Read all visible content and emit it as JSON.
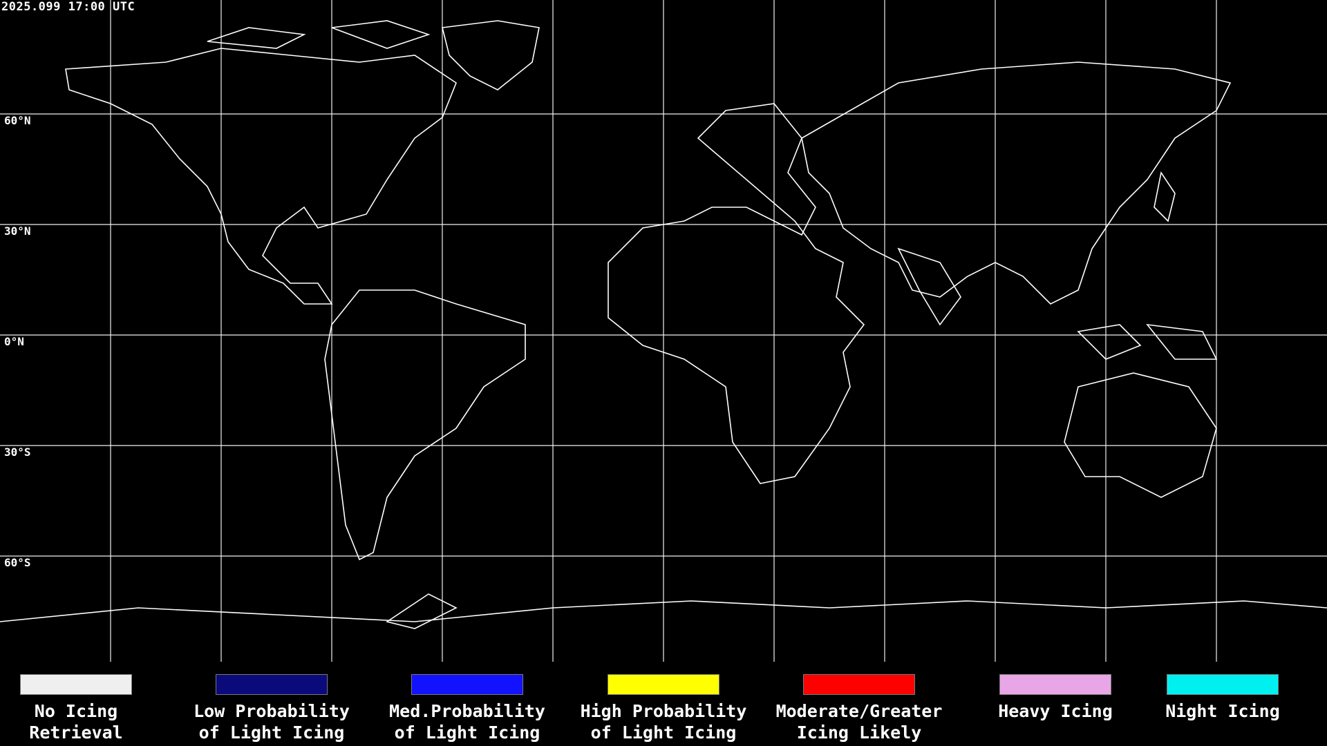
{
  "timestamp": "2025.099 17:00 UTC",
  "lat_labels": [
    "60°N",
    "30°N",
    "0°N",
    "30°S",
    "60°S"
  ],
  "legend": [
    {
      "label": "No Icing\nRetrieval",
      "color": "#efefef"
    },
    {
      "label": "Low Probability\nof Light Icing",
      "color": "#0a0a7a"
    },
    {
      "label": "Med.Probability\nof Light Icing",
      "color": "#1212ff"
    },
    {
      "label": "High Probability\nof Light Icing",
      "color": "#ffff00"
    },
    {
      "label": "Moderate/Greater\nIcing Likely",
      "color": "#ff0000"
    },
    {
      "label": "Heavy Icing",
      "color": "#e8a6e6"
    },
    {
      "label": "Night Icing",
      "color": "#00f0f0"
    }
  ],
  "map": {
    "projection": "equirectangular",
    "gridline_color": "#ffffff",
    "coastline_color": "#ffffff",
    "background_color": "#000000"
  }
}
